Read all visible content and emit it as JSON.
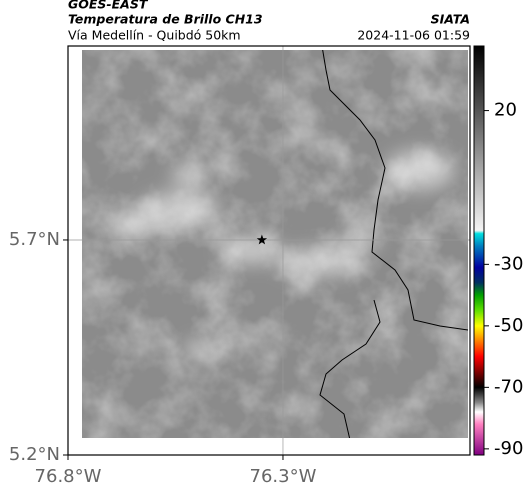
{
  "header": {
    "source": "GOES-EAST",
    "title": "Temperatura de Brillo CH13",
    "agency": "SIATA",
    "route": "Vía Medellín - Quibdó 50km",
    "timestamp": "2024-11-06 01:59"
  },
  "map": {
    "xlim": [
      -76.8,
      -75.865
    ],
    "ylim": [
      5.2,
      6.151
    ],
    "xticks": [
      {
        "value": -76.8,
        "label": "76.8°W"
      },
      {
        "value": -76.3,
        "label": "76.3°W"
      }
    ],
    "yticks": [
      {
        "value": 5.2,
        "label": "5.2°N"
      },
      {
        "value": 5.7,
        "label": "5.7°N"
      }
    ],
    "grid": true,
    "marker": {
      "lon": -76.349,
      "lat": 5.7
    }
  },
  "colorbar": {
    "clim": [
      -92,
      41
    ],
    "ticks": [
      20,
      -30,
      -50,
      -70,
      -90
    ],
    "colormap": [
      {
        "value": 41,
        "color": "#000000"
      },
      {
        "value": 20,
        "color": "#555555"
      },
      {
        "value": 0,
        "color": "#aaaaaa"
      },
      {
        "value": -19,
        "color": "#f4f4f4"
      },
      {
        "value": -20,
        "color": "#00e0e0"
      },
      {
        "value": -24,
        "color": "#0080c0"
      },
      {
        "value": -31,
        "color": "#0000a0"
      },
      {
        "value": -36,
        "color": "#003060"
      },
      {
        "value": -40,
        "color": "#00a000"
      },
      {
        "value": -45,
        "color": "#60e000"
      },
      {
        "value": -50,
        "color": "#ffff00"
      },
      {
        "value": -55,
        "color": "#ff8000"
      },
      {
        "value": -60,
        "color": "#ff0000"
      },
      {
        "value": -65,
        "color": "#800000"
      },
      {
        "value": -70,
        "color": "#000000"
      },
      {
        "value": -75,
        "color": "#888888"
      },
      {
        "value": -78,
        "color": "#ffffff"
      },
      {
        "value": -82,
        "color": "#ff80c0"
      },
      {
        "value": -92,
        "color": "#800080"
      }
    ]
  }
}
